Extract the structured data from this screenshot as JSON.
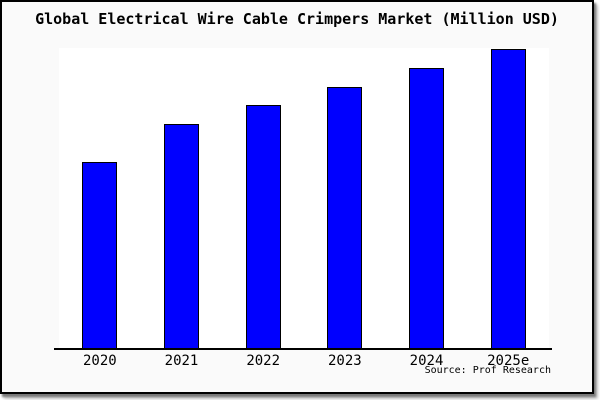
{
  "header": {
    "title": "Global Electrical Wire Cable Crimpers Market (Million USD)"
  },
  "footer": {
    "source": "Source: Prof Research"
  },
  "chart_data": {
    "type": "bar",
    "title": "Global Electrical Wire Cable Crimpers Market (Million USD)",
    "categories": [
      "2020",
      "2021",
      "2022",
      "2023",
      "2024",
      "2025e"
    ],
    "values": [
      100,
      120,
      130,
      140,
      150,
      160
    ],
    "values_estimated_from_bar_heights": true,
    "xlabel": "",
    "ylabel": "",
    "ylim": [
      0,
      160
    ],
    "grid": false,
    "legend": false,
    "y_axis_labels_shown": false,
    "bar_color": "#0000ff",
    "bar_edge_color": "#000000",
    "source_label": "Source: Prof Research"
  },
  "colors": {
    "figure_background": "#fafafa",
    "plot_background": "#ffffff",
    "frame_border": "#000000",
    "axis_line": "#000000",
    "text": "#000000"
  }
}
